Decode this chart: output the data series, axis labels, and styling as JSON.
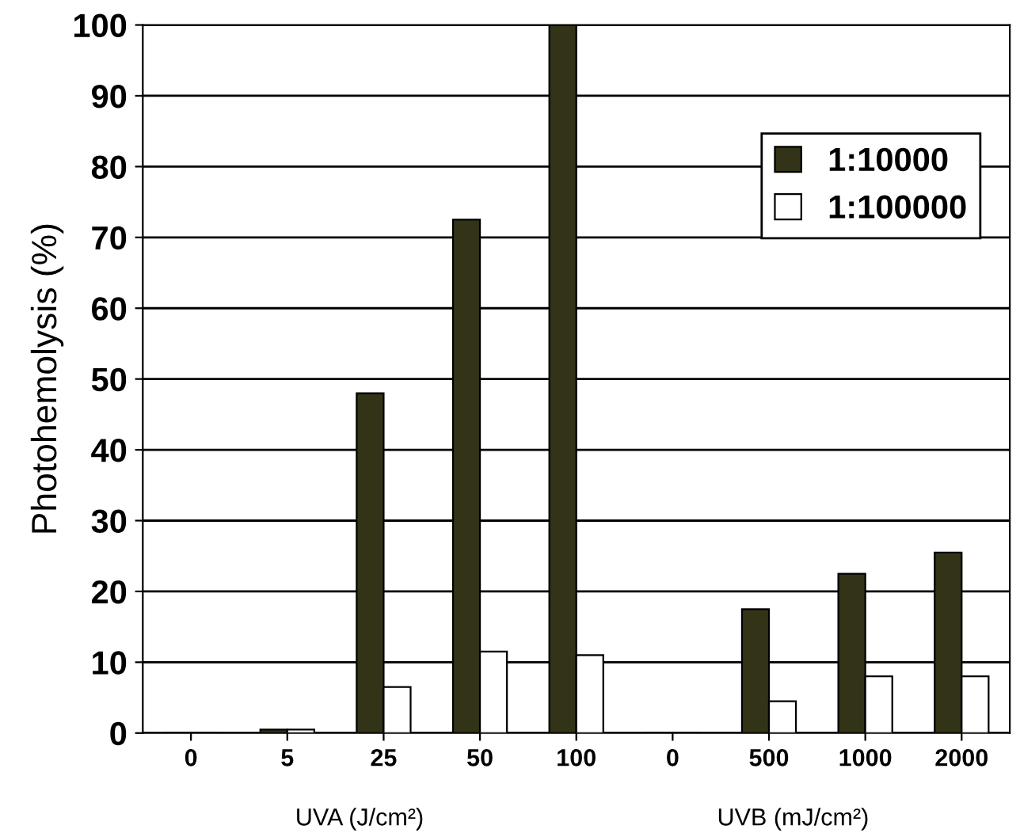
{
  "chart_data": {
    "type": "bar",
    "ylabel": "Photohemolysis (%)",
    "categories": [
      "0",
      "5",
      "25",
      "50",
      "100",
      "0",
      "500",
      "1000",
      "2000"
    ],
    "series": [
      {
        "name": "1:10000",
        "color": "#333318",
        "values": [
          0,
          0.5,
          48,
          72.5,
          100,
          0,
          17.5,
          22.5,
          25.5
        ]
      },
      {
        "name": "1:100000",
        "color": "#ffffff",
        "values": [
          0,
          0.5,
          6.5,
          11.5,
          11,
          0,
          4.5,
          8,
          8
        ]
      }
    ],
    "ylim": [
      0,
      100
    ],
    "yticks": [
      0,
      10,
      20,
      30,
      40,
      50,
      60,
      70,
      80,
      90,
      100
    ],
    "grid": "y",
    "legend": "top right",
    "annotations": [
      "UVA (J/cm²)",
      "UVB (mJ/cm²)"
    ]
  }
}
